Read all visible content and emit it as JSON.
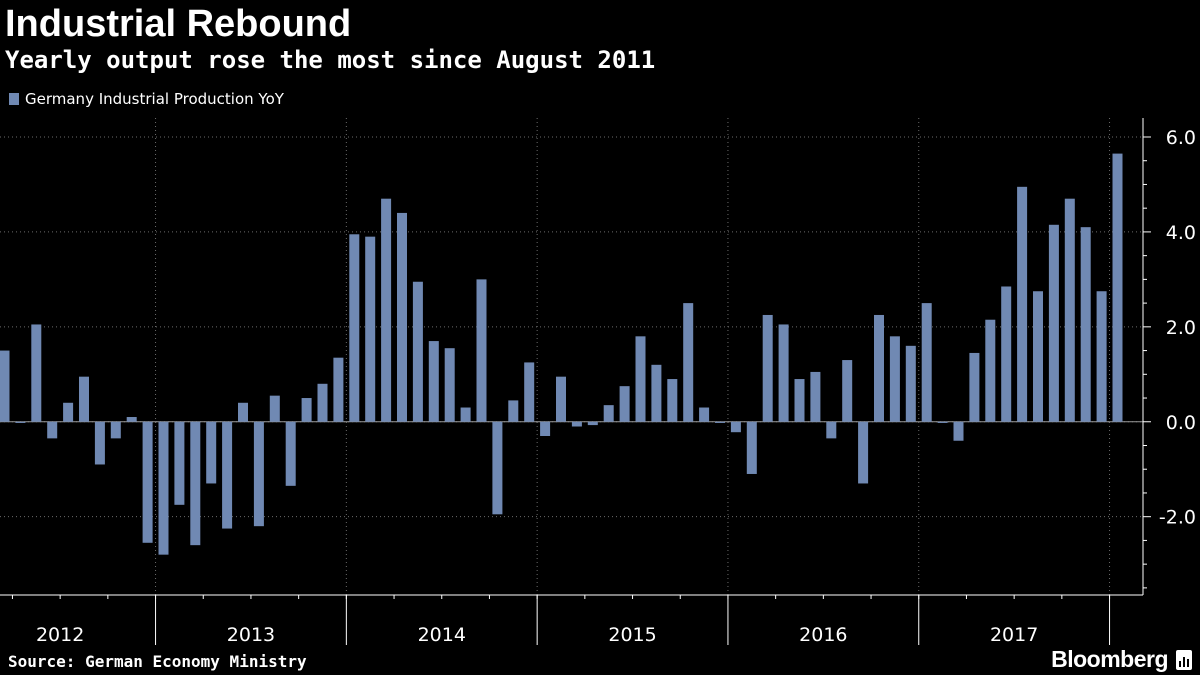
{
  "header": {
    "title": "Industrial Rebound",
    "subtitle": "Yearly output rose the most since August 2011"
  },
  "footer": {
    "source": "Source: German Economy Ministry",
    "brand": "Bloomberg"
  },
  "colors": {
    "background": "#000000",
    "bar": "#7089b3",
    "grid": "#6b6b6b",
    "text": "#ffffff"
  },
  "chart_data": {
    "type": "bar",
    "series": [
      {
        "name": "Germany Industrial Production YoY",
        "values": [
          1.5,
          0.0,
          2.05,
          -0.35,
          0.4,
          0.95,
          -0.9,
          -0.35,
          0.1,
          -2.55,
          -2.8,
          -1.75,
          -2.6,
          -1.3,
          -2.25,
          0.4,
          -2.2,
          0.55,
          -1.35,
          0.5,
          0.8,
          1.35,
          3.95,
          3.9,
          4.7,
          4.4,
          2.95,
          1.7,
          1.55,
          0.3,
          3.0,
          -1.95,
          0.45,
          1.25,
          -0.3,
          0.95,
          -0.1,
          -0.07,
          0.35,
          0.75,
          1.8,
          1.2,
          0.9,
          2.5,
          0.3,
          0.0,
          -0.22,
          -1.1,
          2.25,
          2.05,
          0.9,
          1.05,
          -0.35,
          1.3,
          -1.3,
          2.25,
          1.8,
          1.6,
          2.5,
          0.0,
          -0.4,
          1.45,
          2.15,
          2.85,
          4.95,
          2.75,
          4.15,
          4.7,
          4.1,
          2.75,
          5.65
        ]
      }
    ],
    "x_labels": [
      "2012",
      "2013",
      "2014",
      "2015",
      "2016",
      "2017"
    ],
    "y_ticks": [
      "6.0",
      "4.0",
      "2.0",
      "0.0",
      "-2.0"
    ],
    "y_tick_values": [
      6,
      4,
      2,
      0,
      -2
    ],
    "ylim": [
      -3.65,
      6.4
    ],
    "grid": true,
    "legend_position": "top-left"
  }
}
